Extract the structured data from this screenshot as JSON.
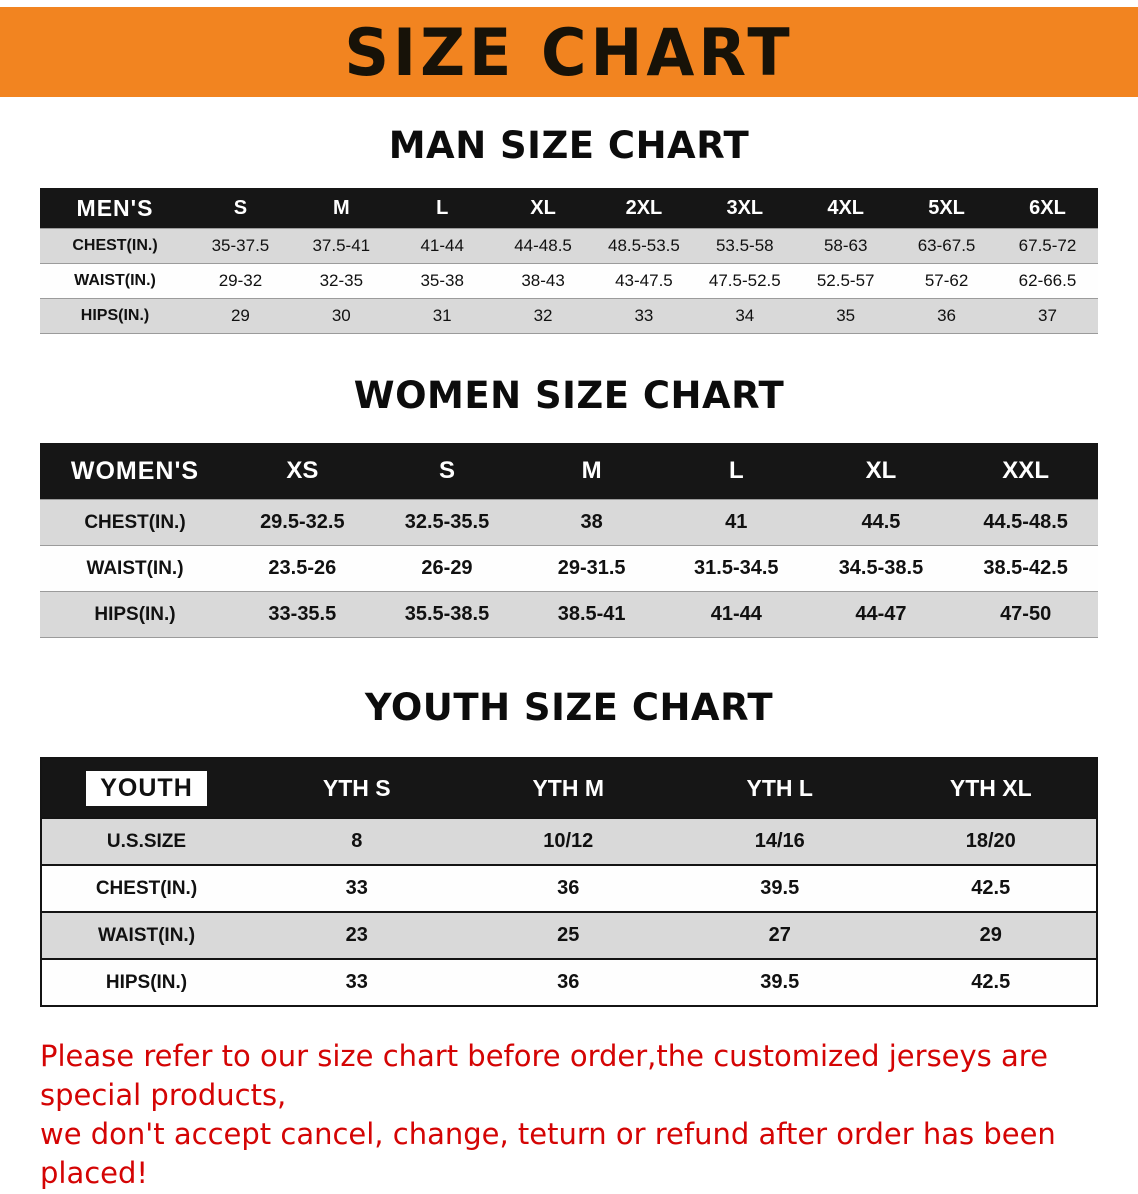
{
  "banner": {
    "title": "SIZE CHART"
  },
  "colors": {
    "banner_orange": "#f28420",
    "table_header_black": "#161616",
    "row_gray": "#d9d9d9",
    "notice_red": "#d40404"
  },
  "sections": [
    {
      "id": "men",
      "heading": "MAN SIZE CHART",
      "table": {
        "header": [
          "MEN'S",
          "S",
          "M",
          "L",
          "XL",
          "2XL",
          "3XL",
          "4XL",
          "5XL",
          "6XL"
        ],
        "rows": [
          [
            "CHEST(IN.)",
            "35-37.5",
            "37.5-41",
            "41-44",
            "44-48.5",
            "48.5-53.5",
            "53.5-58",
            "58-63",
            "63-67.5",
            "67.5-72"
          ],
          [
            "WAIST(IN.)",
            "29-32",
            "32-35",
            "35-38",
            "38-43",
            "43-47.5",
            "47.5-52.5",
            "52.5-57",
            "57-62",
            "62-66.5"
          ],
          [
            "HIPS(IN.)",
            "29",
            "30",
            "31",
            "32",
            "33",
            "34",
            "35",
            "36",
            "37"
          ]
        ]
      }
    },
    {
      "id": "women",
      "heading": "WOMEN SIZE CHART",
      "table": {
        "header": [
          "WOMEN'S",
          "XS",
          "S",
          "M",
          "L",
          "XL",
          "XXL"
        ],
        "rows": [
          [
            "CHEST(IN.)",
            "29.5-32.5",
            "32.5-35.5",
            "38",
            "41",
            "44.5",
            "44.5-48.5"
          ],
          [
            "WAIST(IN.)",
            "23.5-26",
            "26-29",
            "29-31.5",
            "31.5-34.5",
            "34.5-38.5",
            "38.5-42.5"
          ],
          [
            "HIPS(IN.)",
            "33-35.5",
            "35.5-38.5",
            "38.5-41",
            "41-44",
            "44-47",
            "47-50"
          ]
        ]
      }
    },
    {
      "id": "youth",
      "heading": "YOUTH SIZE CHART",
      "table": {
        "header": [
          "YOUTH",
          "YTH S",
          "YTH M",
          "YTH L",
          "YTH XL"
        ],
        "rows": [
          [
            "U.S.SIZE",
            "8",
            "10/12",
            "14/16",
            "18/20"
          ],
          [
            "CHEST(IN.)",
            "33",
            "36",
            "39.5",
            "42.5"
          ],
          [
            "WAIST(IN.)",
            "23",
            "25",
            "27",
            "29"
          ],
          [
            "HIPS(IN.)",
            "33",
            "36",
            "39.5",
            "42.5"
          ]
        ]
      }
    }
  ],
  "notice": {
    "line1": "Please refer to our size chart before order,the customized jerseys are special products,",
    "line2": "we don't accept cancel, change, teturn or refund after order has been placed!"
  }
}
